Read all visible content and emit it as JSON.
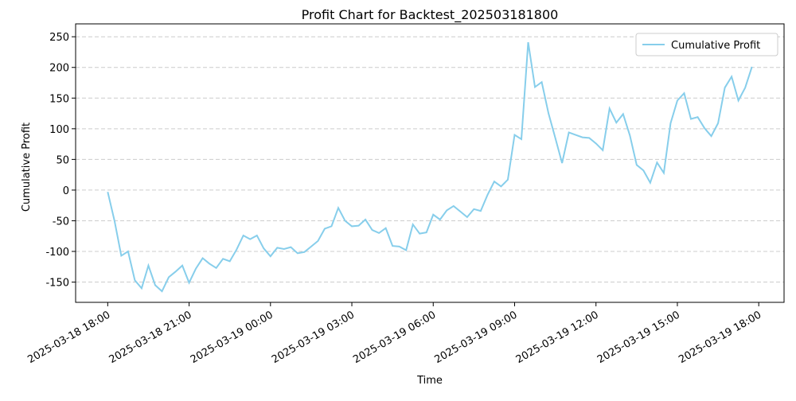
{
  "chart_data": {
    "type": "line",
    "title": "Profit Chart for Backtest_202503181800",
    "x_label": "Time",
    "y_label": "Cumulative Profit",
    "x": [
      "2025-03-18 18:00",
      "2025-03-18 18:15",
      "2025-03-18 18:30",
      "2025-03-18 18:45",
      "2025-03-18 19:00",
      "2025-03-18 19:15",
      "2025-03-18 19:30",
      "2025-03-18 19:45",
      "2025-03-18 20:00",
      "2025-03-18 20:15",
      "2025-03-18 20:30",
      "2025-03-18 20:45",
      "2025-03-18 21:00",
      "2025-03-18 21:15",
      "2025-03-18 21:30",
      "2025-03-18 21:45",
      "2025-03-18 22:00",
      "2025-03-18 22:15",
      "2025-03-18 22:30",
      "2025-03-18 22:45",
      "2025-03-18 23:00",
      "2025-03-18 23:15",
      "2025-03-18 23:30",
      "2025-03-18 23:45",
      "2025-03-19 00:00",
      "2025-03-19 00:15",
      "2025-03-19 00:30",
      "2025-03-19 00:45",
      "2025-03-19 01:00",
      "2025-03-19 01:15",
      "2025-03-19 01:30",
      "2025-03-19 01:45",
      "2025-03-19 02:00",
      "2025-03-19 02:15",
      "2025-03-19 02:30",
      "2025-03-19 02:45",
      "2025-03-19 03:00",
      "2025-03-19 03:15",
      "2025-03-19 03:30",
      "2025-03-19 03:45",
      "2025-03-19 04:00",
      "2025-03-19 04:15",
      "2025-03-19 04:30",
      "2025-03-19 04:45",
      "2025-03-19 05:00",
      "2025-03-19 05:15",
      "2025-03-19 05:30",
      "2025-03-19 05:45",
      "2025-03-19 06:00",
      "2025-03-19 06:15",
      "2025-03-19 06:30",
      "2025-03-19 06:45",
      "2025-03-19 07:00",
      "2025-03-19 07:15",
      "2025-03-19 07:30",
      "2025-03-19 07:45",
      "2025-03-19 08:00",
      "2025-03-19 08:15",
      "2025-03-19 08:30",
      "2025-03-19 08:45",
      "2025-03-19 09:00",
      "2025-03-19 09:15",
      "2025-03-19 09:30",
      "2025-03-19 09:45",
      "2025-03-19 10:00",
      "2025-03-19 10:15",
      "2025-03-19 10:30",
      "2025-03-19 10:45",
      "2025-03-19 11:00",
      "2025-03-19 11:15",
      "2025-03-19 11:30",
      "2025-03-19 11:45",
      "2025-03-19 12:00",
      "2025-03-19 12:15",
      "2025-03-19 12:30",
      "2025-03-19 12:45",
      "2025-03-19 13:00",
      "2025-03-19 13:15",
      "2025-03-19 13:30",
      "2025-03-19 13:45",
      "2025-03-19 14:00",
      "2025-03-19 14:15",
      "2025-03-19 14:30",
      "2025-03-19 14:45",
      "2025-03-19 15:00",
      "2025-03-19 15:15",
      "2025-03-19 15:30",
      "2025-03-19 15:45",
      "2025-03-19 16:00",
      "2025-03-19 16:15",
      "2025-03-19 16:30",
      "2025-03-19 16:45",
      "2025-03-19 17:00",
      "2025-03-19 17:15",
      "2025-03-19 17:30",
      "2025-03-19 17:45"
    ],
    "series": [
      {
        "name": "Cumulative Profit",
        "color": "#87ceeb",
        "values": [
          -3,
          -50,
          -107,
          -100,
          -147,
          -160,
          -123,
          -155,
          -165,
          -142,
          -133,
          -123,
          -151,
          -128,
          -111,
          -120,
          -127,
          -112,
          -116,
          -97,
          -74,
          -80,
          -74,
          -95,
          -108,
          -94,
          -96,
          -93,
          -103,
          -101,
          -92,
          -83,
          -63,
          -59,
          -29,
          -50,
          -59,
          -58,
          -48,
          -65,
          -70,
          -62,
          -91,
          -92,
          -98,
          -56,
          -71,
          -69,
          -40,
          -48,
          -33,
          -26,
          -35,
          -44,
          -31,
          -34,
          -8,
          14,
          6,
          17,
          90,
          83,
          241,
          168,
          176,
          125,
          85,
          44,
          94,
          90,
          86,
          85,
          76,
          65,
          133,
          110,
          124,
          89,
          41,
          32,
          12,
          45,
          28,
          109,
          146,
          158,
          116,
          119,
          101,
          88,
          109,
          167,
          185,
          146,
          167,
          201
        ]
      }
    ],
    "xlim": [
      "2025-03-18 16:49",
      "2025-03-19 18:56"
    ],
    "xticks": [
      "2025-03-18 18:00",
      "2025-03-18 21:00",
      "2025-03-19 00:00",
      "2025-03-19 03:00",
      "2025-03-19 06:00",
      "2025-03-19 09:00",
      "2025-03-19 12:00",
      "2025-03-19 15:00",
      "2025-03-19 18:00"
    ],
    "ylim": [
      -183,
      271
    ],
    "yticks": [
      -150,
      -100,
      -50,
      0,
      50,
      100,
      150,
      200,
      250
    ],
    "grid": true,
    "legend": "upper right"
  }
}
